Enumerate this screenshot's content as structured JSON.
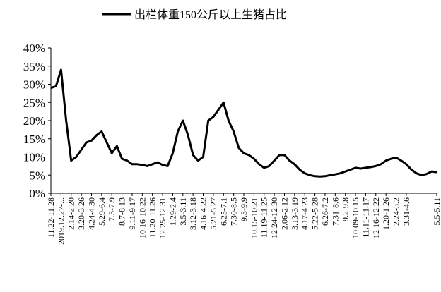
{
  "chart_data": {
    "type": "line",
    "series": [
      {
        "name": "出栏体重150公斤以上生猪占比",
        "color": "#000000",
        "values": [
          29,
          29.5,
          34,
          20,
          9,
          10,
          12,
          14,
          14.5,
          16,
          17,
          14,
          11,
          13,
          9.5,
          9,
          8,
          8,
          7.8,
          7.5,
          8,
          8.5,
          7.8,
          7.5,
          11,
          17,
          20,
          16,
          10.5,
          9,
          10,
          20,
          21,
          23,
          25,
          20,
          17,
          12.5,
          11,
          10.5,
          9.5,
          8,
          7,
          7.5,
          9,
          10.5,
          10.5,
          9,
          8,
          6.5,
          5.5,
          5,
          4.7,
          4.6,
          4.7,
          5,
          5.2,
          5.5,
          6,
          6.5,
          7,
          6.8,
          7,
          7.2,
          7.5,
          8,
          9,
          9.5,
          9.8,
          9,
          8,
          6.5,
          5.5,
          5,
          5.3,
          6,
          5.8
        ]
      }
    ],
    "categories": [
      "11.22-11.28",
      null,
      "2019.12.27-...",
      null,
      "2.14-2.20",
      null,
      "3.20-3.26",
      null,
      "4.24-4.30",
      null,
      "5.29-6.4",
      null,
      "7.3-7.9",
      null,
      "8.7-8.13",
      null,
      "9.11-9.17",
      null,
      "10.16-10.22",
      null,
      "11.20-11.26",
      null,
      "12.25-12.31",
      null,
      "1.29-2.4",
      null,
      "3.5-3.11",
      null,
      "3.12-3.18",
      null,
      "4.16-4.22",
      null,
      "5.21-5.27",
      null,
      "6.25-7.1",
      null,
      "7.30-8.5",
      null,
      "9.3-9.9",
      null,
      "10.15-10.21",
      null,
      "11.19-11.25",
      null,
      "12.24-12.30",
      null,
      "2.06-2.12",
      null,
      "3.13-3.19",
      null,
      "4.17-4.23",
      null,
      "5.22-5.28",
      null,
      "6.26-7.2",
      null,
      "7.31-8.6",
      null,
      "9.2-9.8",
      null,
      "10.09-10.15",
      null,
      "11.11-11.17",
      null,
      "12.16-12.22",
      null,
      "1.20-1.26",
      null,
      "2.24-3.2",
      null,
      "3.31-4.6",
      null,
      null,
      null,
      null,
      null,
      "5.5-5.11"
    ],
    "ylim": [
      0,
      40
    ],
    "yticks": [
      {
        "value": 0,
        "label": "0%"
      },
      {
        "value": 5,
        "label": "5%"
      },
      {
        "value": 10,
        "label": "10%"
      },
      {
        "value": 15,
        "label": "15%"
      },
      {
        "value": 20,
        "label": "20%"
      },
      {
        "value": 25,
        "label": "25%"
      },
      {
        "value": 30,
        "label": "30%"
      },
      {
        "value": 35,
        "label": "35%"
      },
      {
        "value": 40,
        "label": "40%"
      }
    ],
    "grid": false,
    "legend": "top"
  }
}
